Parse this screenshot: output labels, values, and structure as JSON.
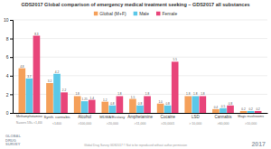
{
  "chart_data": {
    "type": "bar",
    "title": "GDS2017 Global comparison of emergency medical treatment seeking – GDS2017 all substances",
    "categories": [
      "Methamphetamine",
      "Synth. cannabis",
      "Alcohol",
      "MDMA/Ecstasy",
      "Amphetamine",
      "Cocaine",
      "LSD",
      "Cannabis",
      "Magic mushrooms"
    ],
    "series": [
      {
        "name": "Global (M+F)",
        "color": "#f5a05a",
        "values": [
          4.8,
          3.2,
          1.8,
          1.2,
          1.5,
          1.0,
          1.8,
          0.4,
          0.2
        ],
        "value_labels": [
          "4.8",
          "3.2",
          "1.8",
          "1.2",
          "1.5",
          "1.0",
          "1.8",
          "0.4",
          "0.2"
        ]
      },
      {
        "name": "Male",
        "color": "#5bc8e8",
        "values": [
          3.7,
          4.2,
          1.25,
          0.8,
          0.8,
          0.8,
          1.8,
          0.5,
          0.2
        ]
      },
      {
        "name": "Female",
        "color": "#e8457a",
        "values": [
          8.3,
          2.2,
          1.4,
          1.8,
          1.8,
          5.5,
          1.8,
          0.8,
          0.2
        ]
      }
    ],
    "ylim": [
      0,
      10
    ],
    "yticks": [
      0,
      2,
      4,
      6,
      8,
      10
    ],
    "grid": true,
    "data_labels": true,
    "legend": "top",
    "annotations": [
      {
        "text": "N=users 53k+ <1,400",
        "x": "Methamphetamine"
      },
      {
        "text": "<1400",
        "x": "Synth. cannabis"
      },
      {
        "text": ">100,000",
        "x": "Alcohol"
      },
      {
        "text": ">20,000",
        "x": "MDMA/Ecstasy"
      },
      {
        "text": ">11,000",
        "x": "Amphetamine"
      },
      {
        "text": ">20,0001",
        "x": "Cocaine"
      },
      {
        "text": "> 10,000",
        "x": "LSD"
      },
      {
        "text": ">60,000",
        "x": "Cannabis"
      },
      {
        "text": ">10,000",
        "x": "Magic mushrooms"
      },
      {
        "text": "GLOBAL\nDRUG\nSURVEY"
      },
      {
        "text": "Global Drug Survey GDS2017 © Not to be reproduced without author permission"
      },
      {
        "text": "2017"
      }
    ]
  }
}
